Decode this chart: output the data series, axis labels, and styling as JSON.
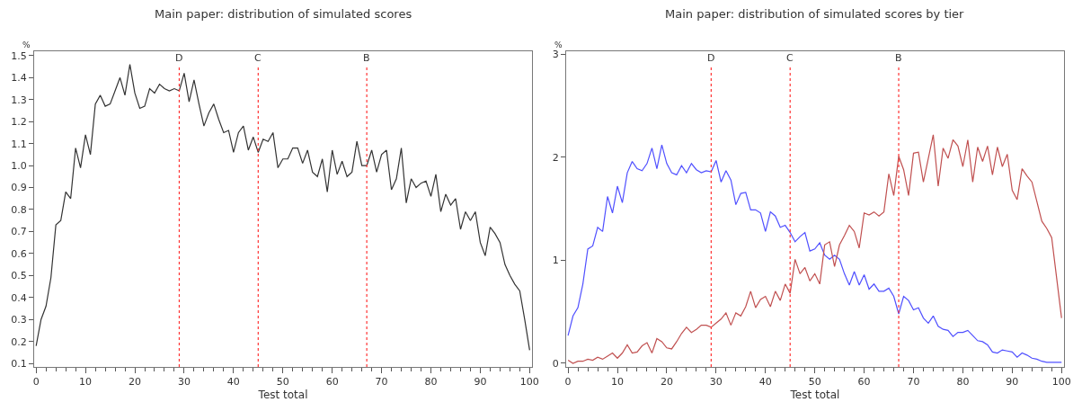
{
  "chart_data": [
    {
      "type": "line",
      "title": "Main paper: distribution of simulated scores",
      "xlabel": "Test total",
      "ylabel": "%",
      "x": [
        0,
        1,
        2,
        3,
        4,
        5,
        6,
        7,
        8,
        9,
        10,
        11,
        12,
        13,
        14,
        15,
        16,
        17,
        18,
        19,
        20,
        21,
        22,
        23,
        24,
        25,
        26,
        27,
        28,
        29,
        30,
        31,
        32,
        33,
        34,
        35,
        36,
        37,
        38,
        39,
        40,
        41,
        42,
        43,
        44,
        45,
        46,
        47,
        48,
        49,
        50,
        51,
        52,
        53,
        54,
        55,
        56,
        57,
        58,
        59,
        60,
        61,
        62,
        63,
        64,
        65,
        66,
        67,
        68,
        69,
        70,
        71,
        72,
        73,
        74,
        75,
        76,
        77,
        78,
        79,
        80,
        81,
        82,
        83,
        84,
        85,
        86,
        87,
        88,
        89,
        90,
        91,
        92,
        93,
        94,
        95,
        96,
        97,
        98,
        99,
        100
      ],
      "series": [
        {
          "color": "#333333",
          "values": [
            0.18,
            0.3,
            0.36,
            0.49,
            0.73,
            0.75,
            0.88,
            0.85,
            1.08,
            0.99,
            1.14,
            1.05,
            1.28,
            1.32,
            1.27,
            1.28,
            1.34,
            1.4,
            1.32,
            1.46,
            1.33,
            1.26,
            1.27,
            1.35,
            1.33,
            1.37,
            1.35,
            1.34,
            1.35,
            1.34,
            1.42,
            1.29,
            1.39,
            1.28,
            1.18,
            1.24,
            1.28,
            1.21,
            1.15,
            1.16,
            1.06,
            1.15,
            1.18,
            1.07,
            1.13,
            1.06,
            1.12,
            1.11,
            1.15,
            0.99,
            1.03,
            1.03,
            1.08,
            1.08,
            1.01,
            1.07,
            0.97,
            0.95,
            1.03,
            0.88,
            1.07,
            0.96,
            1.02,
            0.95,
            0.97,
            1.11,
            1.0,
            1.0,
            1.07,
            0.97,
            1.05,
            1.07,
            0.89,
            0.94,
            1.08,
            0.83,
            0.94,
            0.9,
            0.92,
            0.93,
            0.86,
            0.96,
            0.79,
            0.87,
            0.82,
            0.85,
            0.71,
            0.79,
            0.75,
            0.79,
            0.65,
            0.59,
            0.72,
            0.69,
            0.65,
            0.55,
            0.5,
            0.46,
            0.43,
            0.3,
            0.16
          ]
        }
      ],
      "xlim": [
        -0.4,
        100.5
      ],
      "xticks": [
        0,
        10,
        20,
        30,
        40,
        50,
        60,
        70,
        80,
        90,
        100
      ],
      "ylim": [
        0.084,
        1.52
      ],
      "yticks": [
        0.1,
        0.2,
        0.3,
        0.4,
        0.5,
        0.6,
        0.7,
        0.8,
        0.9,
        {
          "value": 1.0,
          "label": "1.0"
        },
        1.1,
        1.2,
        1.3,
        1.4,
        1.5
      ],
      "ref_lines": [
        {
          "axis": "x",
          "value": 29,
          "label": "D",
          "color": "#ff3333",
          "line_style": "dotted"
        },
        {
          "axis": "x",
          "value": 45,
          "label": "C",
          "color": "#ff3333",
          "line_style": "dotted"
        },
        {
          "axis": "x",
          "value": 67,
          "label": "B",
          "color": "#ff3333",
          "line_style": "dotted"
        }
      ],
      "marker": "none",
      "line_style": "solid"
    },
    {
      "type": "line",
      "title": "Main paper: distribution of simulated scores by tier",
      "xlabel": "Test total",
      "ylabel": "%",
      "x": [
        0,
        1,
        2,
        3,
        4,
        5,
        6,
        7,
        8,
        9,
        10,
        11,
        12,
        13,
        14,
        15,
        16,
        17,
        18,
        19,
        20,
        21,
        22,
        23,
        24,
        25,
        26,
        27,
        28,
        29,
        30,
        31,
        32,
        33,
        34,
        35,
        36,
        37,
        38,
        39,
        40,
        41,
        42,
        43,
        44,
        45,
        46,
        47,
        48,
        49,
        50,
        51,
        52,
        53,
        54,
        55,
        56,
        57,
        58,
        59,
        60,
        61,
        62,
        63,
        64,
        65,
        66,
        67,
        68,
        69,
        70,
        71,
        72,
        73,
        74,
        75,
        76,
        77,
        78,
        79,
        80,
        81,
        82,
        83,
        84,
        85,
        86,
        87,
        88,
        89,
        90,
        91,
        92,
        93,
        94,
        95,
        96,
        97,
        98,
        99,
        100
      ],
      "series": [
        {
          "color": "#5050ff",
          "values": [
            0.27,
            0.46,
            0.54,
            0.77,
            1.11,
            1.14,
            1.32,
            1.28,
            1.62,
            1.46,
            1.72,
            1.56,
            1.85,
            1.96,
            1.89,
            1.87,
            1.94,
            2.09,
            1.89,
            2.12,
            1.94,
            1.85,
            1.83,
            1.92,
            1.85,
            1.94,
            1.88,
            1.85,
            1.87,
            1.86,
            1.97,
            1.76,
            1.87,
            1.78,
            1.54,
            1.65,
            1.66,
            1.49,
            1.49,
            1.46,
            1.28,
            1.47,
            1.43,
            1.32,
            1.34,
            1.27,
            1.18,
            1.23,
            1.27,
            1.09,
            1.11,
            1.17,
            1.05,
            1.01,
            1.05,
            1.01,
            0.87,
            0.76,
            0.89,
            0.76,
            0.86,
            0.72,
            0.77,
            0.7,
            0.7,
            0.73,
            0.65,
            0.48,
            0.65,
            0.61,
            0.52,
            0.54,
            0.44,
            0.39,
            0.46,
            0.36,
            0.33,
            0.32,
            0.26,
            0.3,
            0.3,
            0.32,
            0.27,
            0.22,
            0.21,
            0.18,
            0.11,
            0.1,
            0.13,
            0.12,
            0.11,
            0.06,
            0.1,
            0.08,
            0.05,
            0.04,
            0.02,
            0.01,
            0.01,
            0.01,
            0.01
          ]
        },
        {
          "color": "#c05050",
          "values": [
            0.03,
            0.0,
            0.02,
            0.02,
            0.04,
            0.03,
            0.06,
            0.04,
            0.07,
            0.1,
            0.05,
            0.1,
            0.18,
            0.1,
            0.11,
            0.17,
            0.2,
            0.1,
            0.24,
            0.21,
            0.15,
            0.14,
            0.21,
            0.29,
            0.35,
            0.3,
            0.33,
            0.37,
            0.37,
            0.35,
            0.39,
            0.43,
            0.49,
            0.37,
            0.49,
            0.46,
            0.55,
            0.7,
            0.54,
            0.62,
            0.65,
            0.55,
            0.7,
            0.61,
            0.77,
            0.68,
            1.01,
            0.87,
            0.93,
            0.8,
            0.87,
            0.77,
            1.15,
            1.18,
            0.94,
            1.15,
            1.24,
            1.34,
            1.28,
            1.12,
            1.46,
            1.44,
            1.47,
            1.43,
            1.47,
            1.84,
            1.63,
            2.01,
            1.88,
            1.63,
            2.04,
            2.05,
            1.76,
            1.99,
            2.22,
            1.72,
            2.09,
            1.99,
            2.17,
            2.11,
            1.91,
            2.17,
            1.76,
            2.1,
            1.96,
            2.11,
            1.83,
            2.1,
            1.91,
            2.03,
            1.68,
            1.59,
            1.89,
            1.82,
            1.76,
            1.57,
            1.38,
            1.31,
            1.22,
            0.83,
            0.44
          ]
        }
      ],
      "xlim": [
        -0.4,
        100.5
      ],
      "xticks": [
        0,
        10,
        20,
        30,
        40,
        50,
        60,
        70,
        80,
        90,
        100
      ],
      "ylim": [
        -0.035,
        3.03
      ],
      "yticks": [
        0,
        1,
        2,
        3
      ],
      "ref_lines": [
        {
          "axis": "x",
          "value": 29,
          "label": "D",
          "color": "#ff3333",
          "line_style": "dotted"
        },
        {
          "axis": "x",
          "value": 45,
          "label": "C",
          "color": "#ff3333",
          "line_style": "dotted"
        },
        {
          "axis": "x",
          "value": 67,
          "label": "B",
          "color": "#ff3333",
          "line_style": "dotted"
        }
      ],
      "marker": "none",
      "line_style": "solid"
    }
  ]
}
